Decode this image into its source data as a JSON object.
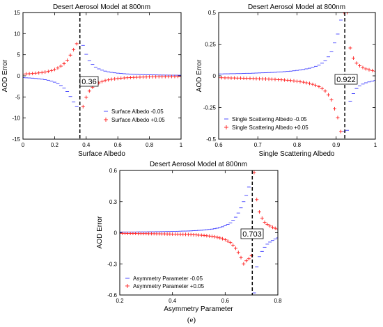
{
  "figure": {
    "caption": "(e)"
  },
  "chart_data": [
    {
      "type": "scatter",
      "title": "Desert Aerosol Model at 800nm",
      "xlabel": "Surface Albedo",
      "ylabel": "AOD Error",
      "xlim": [
        0,
        1
      ],
      "ylim": [
        -15,
        15
      ],
      "x_ticks": [
        "0",
        "0.2",
        "0.4",
        "0.6",
        "0.8",
        "1"
      ],
      "y_ticks": [
        "-15",
        "-10",
        "-5",
        "0",
        "5",
        "10",
        "15"
      ],
      "x_tick_values": [
        0,
        0.2,
        0.4,
        0.6,
        0.8,
        1
      ],
      "y_tick_values": [
        -15,
        -10,
        -5,
        0,
        5,
        10,
        15
      ],
      "grid": false,
      "legend_position": "bottom-right",
      "vline": 0.36,
      "annotation": "0.36",
      "pole": 0.36,
      "x_step": 0.02,
      "series": [
        {
          "name": "Surface Albedo -0.05",
          "marker": "dash",
          "color": "#3b3bff",
          "x": [
            0,
            0.02,
            0.04,
            0.06,
            0.08,
            0.1,
            0.12,
            0.14,
            0.16,
            0.18,
            0.2,
            0.22,
            0.24,
            0.26,
            0.28,
            0.3,
            0.32,
            0.34,
            0.38,
            0.4,
            0.42,
            0.44,
            0.46,
            0.48,
            0.5,
            0.52,
            0.54,
            0.56,
            0.58,
            0.6,
            0.62,
            0.64,
            0.66,
            0.68,
            0.7,
            0.72,
            0.74,
            0.76,
            0.78,
            0.8,
            0.82,
            0.84,
            0.86,
            0.88,
            0.9,
            0.92,
            0.94,
            0.96,
            0.98,
            1.0
          ],
          "y": [
            -0.42,
            -0.47,
            -0.5,
            -0.55,
            -0.62,
            -0.7,
            -0.79,
            -0.9,
            -1.05,
            -1.25,
            -1.5,
            -1.85,
            -2.3,
            -2.9,
            -3.7,
            -4.9,
            -6.2,
            -7.3,
            7.2,
            5.1,
            3.6,
            2.7,
            2.05,
            1.65,
            1.35,
            1.12,
            0.95,
            0.82,
            0.72,
            0.63,
            0.56,
            0.5,
            0.45,
            0.41,
            0.37,
            0.34,
            0.31,
            0.29,
            0.27,
            0.25,
            0.23,
            0.22,
            0.2,
            0.19,
            0.18,
            0.17,
            0.16,
            0.15,
            0.145,
            0.14
          ]
        },
        {
          "name": "Surface Albedo +0.05",
          "marker": "plus",
          "color": "#ff2020",
          "x": [
            0,
            0.02,
            0.04,
            0.06,
            0.08,
            0.1,
            0.12,
            0.14,
            0.16,
            0.18,
            0.2,
            0.22,
            0.24,
            0.26,
            0.28,
            0.3,
            0.32,
            0.34,
            0.38,
            0.4,
            0.42,
            0.44,
            0.46,
            0.48,
            0.5,
            0.52,
            0.54,
            0.56,
            0.58,
            0.6,
            0.62,
            0.64,
            0.66,
            0.68,
            0.7,
            0.72,
            0.74,
            0.76,
            0.78,
            0.8,
            0.82,
            0.84,
            0.86,
            0.88,
            0.9,
            0.92,
            0.94,
            0.96,
            0.98,
            1.0
          ],
          "y": [
            0.42,
            0.47,
            0.5,
            0.55,
            0.62,
            0.7,
            0.79,
            0.9,
            1.05,
            1.25,
            1.5,
            1.85,
            2.3,
            2.9,
            3.7,
            4.9,
            6.2,
            7.6,
            -7.3,
            -5.1,
            -3.6,
            -2.7,
            -2.05,
            -1.65,
            -1.35,
            -1.12,
            -0.95,
            -0.82,
            -0.72,
            -0.63,
            -0.56,
            -0.5,
            -0.45,
            -0.41,
            -0.37,
            -0.34,
            -0.31,
            -0.29,
            -0.27,
            -0.25,
            -0.23,
            -0.22,
            -0.2,
            -0.19,
            -0.18,
            -0.17,
            -0.16,
            -0.15,
            -0.145,
            -0.14
          ]
        }
      ]
    },
    {
      "type": "scatter",
      "title": "Desert Aerosol Model at 800nm",
      "xlabel": "Single Scattering Albedo",
      "ylabel": "AOD Error",
      "xlim": [
        0.6,
        1
      ],
      "ylim": [
        -0.5,
        0.5
      ],
      "x_ticks": [
        "0.6",
        "0.7",
        "0.8",
        "0.9",
        "1"
      ],
      "y_ticks": [
        "-0.5",
        "-0.25",
        "0",
        "0.25",
        "0.5"
      ],
      "x_tick_values": [
        0.6,
        0.7,
        0.8,
        0.9,
        1.0
      ],
      "y_tick_values": [
        -0.5,
        -0.25,
        0,
        0.25,
        0.5
      ],
      "grid": false,
      "legend_position": "bottom-left",
      "vline": 0.922,
      "annotation": "0.922",
      "pole": 0.922,
      "x_step": 0.008,
      "series": [
        {
          "name": "Single Scattering Albedo -0.05",
          "marker": "dash",
          "color": "#3b3bff",
          "x": [
            0.6,
            0.608,
            0.616,
            0.624,
            0.632,
            0.64,
            0.648,
            0.656,
            0.664,
            0.672,
            0.68,
            0.688,
            0.696,
            0.704,
            0.712,
            0.72,
            0.728,
            0.736,
            0.744,
            0.752,
            0.76,
            0.768,
            0.776,
            0.784,
            0.792,
            0.8,
            0.808,
            0.816,
            0.824,
            0.832,
            0.84,
            0.848,
            0.856,
            0.864,
            0.872,
            0.88,
            0.888,
            0.896,
            0.904,
            0.912,
            0.92,
            0.928,
            0.936,
            0.944,
            0.952,
            0.96,
            0.968,
            0.976,
            0.984,
            0.992,
            1.0
          ],
          "y": [
            0.015,
            0.015,
            0.016,
            0.016,
            0.017,
            0.017,
            0.018,
            0.018,
            0.019,
            0.02,
            0.02,
            0.021,
            0.022,
            0.023,
            0.024,
            0.025,
            0.026,
            0.027,
            0.028,
            0.03,
            0.031,
            0.033,
            0.035,
            0.037,
            0.04,
            0.043,
            0.046,
            0.05,
            0.055,
            0.06,
            0.067,
            0.075,
            0.085,
            0.1,
            0.12,
            0.15,
            0.19,
            0.26,
            0.33,
            0.44,
            -0.44,
            -0.43,
            -0.2,
            -0.14,
            -0.1,
            -0.08,
            -0.065,
            -0.055,
            -0.048,
            -0.042,
            -0.037
          ]
        },
        {
          "name": "Single Scattering Albedo +0.05",
          "marker": "plus",
          "color": "#ff2020",
          "x": [
            0.6,
            0.608,
            0.616,
            0.624,
            0.632,
            0.64,
            0.648,
            0.656,
            0.664,
            0.672,
            0.68,
            0.688,
            0.696,
            0.704,
            0.712,
            0.72,
            0.728,
            0.736,
            0.744,
            0.752,
            0.76,
            0.768,
            0.776,
            0.784,
            0.792,
            0.8,
            0.808,
            0.816,
            0.824,
            0.832,
            0.84,
            0.848,
            0.856,
            0.864,
            0.872,
            0.88,
            0.888,
            0.896,
            0.904,
            0.912,
            0.92,
            0.928,
            0.936,
            0.944,
            0.952,
            0.96,
            0.968,
            0.976,
            0.984,
            0.992,
            1.0
          ],
          "y": [
            -0.015,
            -0.015,
            -0.016,
            -0.016,
            -0.017,
            -0.017,
            -0.018,
            -0.018,
            -0.019,
            -0.02,
            -0.02,
            -0.021,
            -0.022,
            -0.023,
            -0.024,
            -0.025,
            -0.026,
            -0.027,
            -0.028,
            -0.03,
            -0.031,
            -0.033,
            -0.035,
            -0.037,
            -0.04,
            -0.043,
            -0.046,
            -0.05,
            -0.055,
            -0.06,
            -0.067,
            -0.075,
            -0.085,
            -0.1,
            -0.12,
            -0.15,
            -0.19,
            -0.26,
            -0.33,
            -0.44,
            0.5,
            0.5,
            0.22,
            0.14,
            0.1,
            0.08,
            0.065,
            0.055,
            0.048,
            0.042,
            0.037
          ]
        }
      ]
    },
    {
      "type": "scatter",
      "title": "Desert Aerosol Model at 800nm",
      "xlabel": "Asymmetry Parameter",
      "ylabel": "AOD Error",
      "xlim": [
        0.2,
        0.8
      ],
      "ylim": [
        -0.6,
        0.6
      ],
      "x_ticks": [
        "0.2",
        "0.4",
        "0.6",
        "0.8"
      ],
      "y_ticks": [
        "-0.6",
        "-0.3",
        "0",
        "0.3",
        "0.6"
      ],
      "x_tick_values": [
        0.2,
        0.4,
        0.6,
        0.8
      ],
      "y_tick_values": [
        -0.6,
        -0.3,
        0,
        0.3,
        0.6
      ],
      "grid": false,
      "legend_position": "bottom-left",
      "vline": 0.703,
      "annotation": "0.703",
      "pole": 0.703,
      "x_step": 0.01,
      "series": [
        {
          "name": "Asymmetry Parameter -0.05",
          "marker": "dash",
          "color": "#3b3bff",
          "x": [
            0.2,
            0.21,
            0.22,
            0.23,
            0.24,
            0.25,
            0.26,
            0.27,
            0.28,
            0.29,
            0.3,
            0.31,
            0.32,
            0.33,
            0.34,
            0.35,
            0.36,
            0.37,
            0.38,
            0.39,
            0.4,
            0.41,
            0.42,
            0.43,
            0.44,
            0.45,
            0.46,
            0.47,
            0.48,
            0.49,
            0.5,
            0.51,
            0.52,
            0.53,
            0.54,
            0.55,
            0.56,
            0.57,
            0.58,
            0.59,
            0.6,
            0.61,
            0.62,
            0.63,
            0.64,
            0.65,
            0.66,
            0.67,
            0.68,
            0.69,
            0.7,
            0.71,
            0.72,
            0.73,
            0.74,
            0.75,
            0.76,
            0.77,
            0.78,
            0.79,
            0.8
          ],
          "y": [
            0.006,
            0.006,
            0.006,
            0.007,
            0.007,
            0.007,
            0.007,
            0.008,
            0.008,
            0.008,
            0.008,
            0.009,
            0.009,
            0.009,
            0.01,
            0.01,
            0.011,
            0.011,
            0.012,
            0.012,
            0.013,
            0.013,
            0.014,
            0.015,
            0.016,
            0.016,
            0.017,
            0.018,
            0.02,
            0.021,
            0.023,
            0.024,
            0.026,
            0.029,
            0.032,
            0.035,
            0.039,
            0.044,
            0.05,
            0.058,
            0.067,
            0.08,
            0.095,
            0.12,
            0.15,
            0.19,
            0.24,
            0.3,
            0.36,
            0.44,
            0.6,
            -0.58,
            -0.33,
            -0.23,
            -0.18,
            -0.14,
            -0.11,
            -0.09,
            -0.075,
            -0.06,
            -0.05
          ]
        },
        {
          "name": "Asymmetry Parameter +0.05",
          "marker": "plus",
          "color": "#ff2020",
          "x": [
            0.2,
            0.21,
            0.22,
            0.23,
            0.24,
            0.25,
            0.26,
            0.27,
            0.28,
            0.29,
            0.3,
            0.31,
            0.32,
            0.33,
            0.34,
            0.35,
            0.36,
            0.37,
            0.38,
            0.39,
            0.4,
            0.41,
            0.42,
            0.43,
            0.44,
            0.45,
            0.46,
            0.47,
            0.48,
            0.49,
            0.5,
            0.51,
            0.52,
            0.53,
            0.54,
            0.55,
            0.56,
            0.57,
            0.58,
            0.59,
            0.6,
            0.61,
            0.62,
            0.63,
            0.64,
            0.65,
            0.66,
            0.67,
            0.68,
            0.69,
            0.7,
            0.71,
            0.72,
            0.73,
            0.74,
            0.75,
            0.76,
            0.77,
            0.78,
            0.79,
            0.8
          ],
          "y": [
            -0.006,
            -0.006,
            -0.006,
            -0.007,
            -0.007,
            -0.007,
            -0.007,
            -0.008,
            -0.008,
            -0.008,
            -0.008,
            -0.009,
            -0.009,
            -0.009,
            -0.01,
            -0.01,
            -0.011,
            -0.011,
            -0.012,
            -0.012,
            -0.013,
            -0.013,
            -0.014,
            -0.015,
            -0.016,
            -0.016,
            -0.017,
            -0.018,
            -0.02,
            -0.021,
            -0.023,
            -0.024,
            -0.026,
            -0.029,
            -0.032,
            -0.035,
            -0.039,
            -0.044,
            -0.05,
            -0.058,
            -0.067,
            -0.08,
            -0.095,
            -0.12,
            -0.15,
            -0.19,
            -0.24,
            -0.3,
            -0.27,
            -0.25,
            -0.22,
            0.58,
            0.32,
            0.2,
            0.14,
            0.1,
            0.08,
            0.065,
            0.052,
            0.043,
            0.036
          ]
        }
      ]
    }
  ]
}
